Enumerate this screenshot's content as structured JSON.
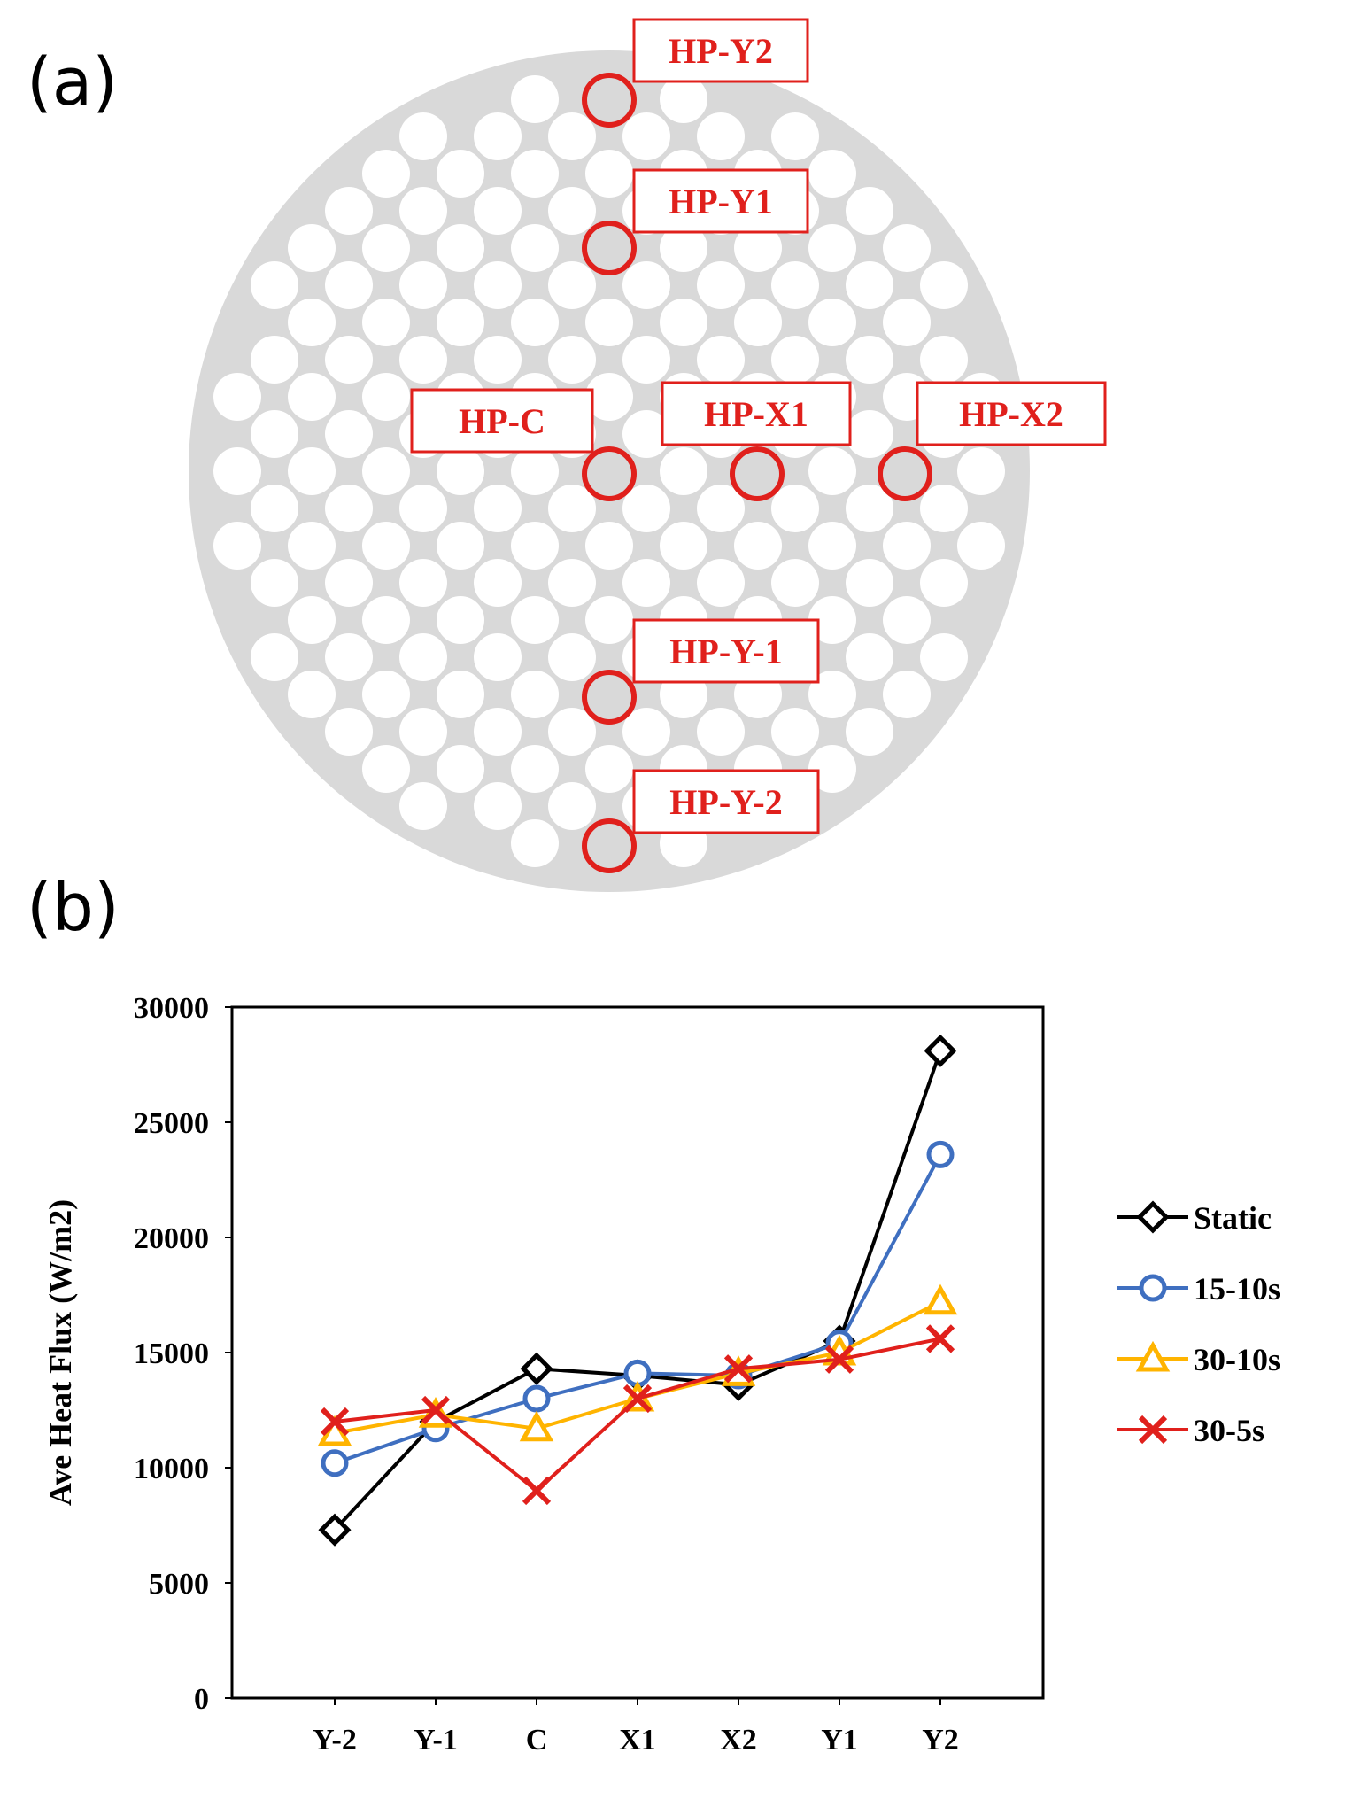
{
  "panel_a": {
    "letter": "(a)",
    "sensors": [
      {
        "id": "Y2",
        "label": "HP-Y2"
      },
      {
        "id": "Y1",
        "label": "HP-Y1"
      },
      {
        "id": "C",
        "label": "HP-C"
      },
      {
        "id": "X1",
        "label": "HP-X1"
      },
      {
        "id": "X2",
        "label": "HP-X2"
      },
      {
        "id": "Y-1",
        "label": "HP-Y-1"
      },
      {
        "id": "Y-2",
        "label": "HP-Y-2"
      }
    ]
  },
  "panel_b": {
    "letter": "(b)"
  },
  "chart_data": {
    "type": "line",
    "title": "",
    "xlabel": "",
    "ylabel": "Ave Heat Flux (W/m2)",
    "categories": [
      "Y-2",
      "Y-1",
      "C",
      "X1",
      "X2",
      "Y1",
      "Y2"
    ],
    "ylim": [
      0,
      30000
    ],
    "yticks": [
      0,
      5000,
      10000,
      15000,
      20000,
      25000,
      30000
    ],
    "grid": false,
    "legend_position": "right",
    "series": [
      {
        "name": "Static",
        "marker": "diamond",
        "color": "#000000",
        "values": [
          7300,
          12000,
          14300,
          14000,
          13600,
          15500,
          28100
        ]
      },
      {
        "name": "15-10s",
        "marker": "circle",
        "color": "#3f6fc0",
        "values": [
          10200,
          11700,
          13000,
          14100,
          14000,
          15400,
          23600
        ]
      },
      {
        "name": "30-10s",
        "marker": "triangle",
        "color": "#ffb400",
        "values": [
          11500,
          12300,
          11700,
          13000,
          14100,
          15000,
          17200
        ]
      },
      {
        "name": "30-5s",
        "marker": "x",
        "color": "#e0201c",
        "values": [
          12000,
          12500,
          9000,
          13000,
          14300,
          14700,
          15600
        ]
      }
    ]
  }
}
